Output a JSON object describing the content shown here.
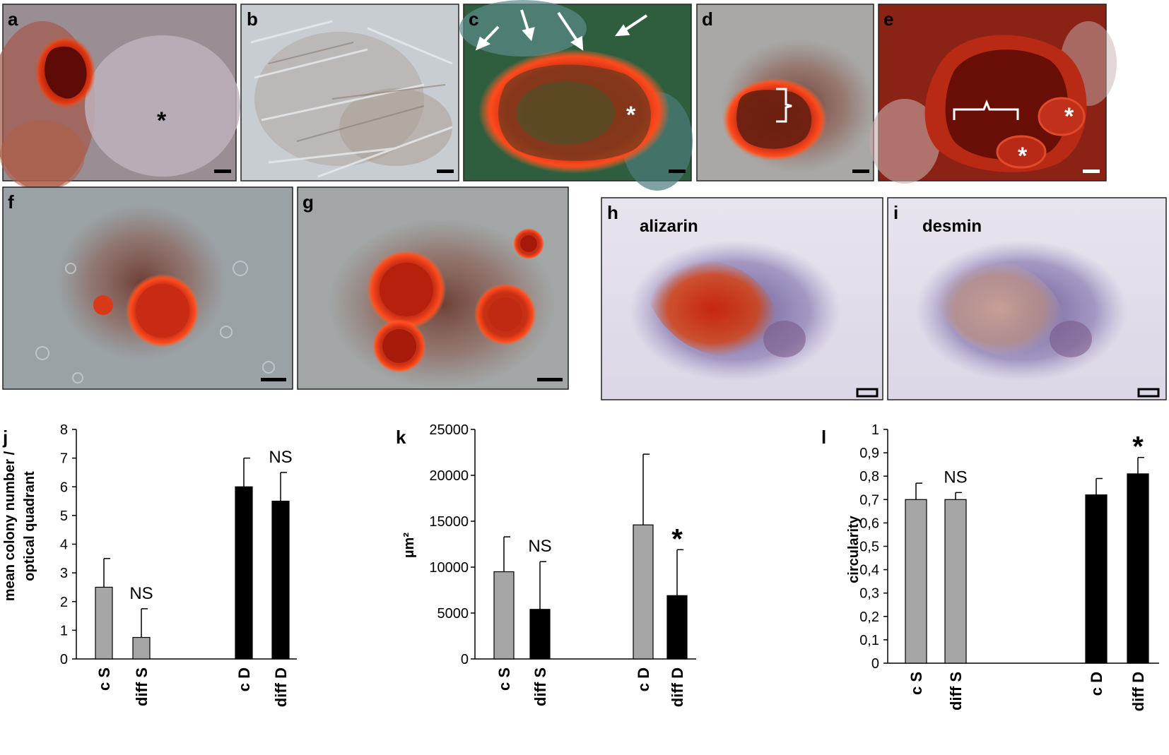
{
  "micrographs": {
    "a": {
      "letter": "a"
    },
    "b": {
      "letter": "b"
    },
    "c": {
      "letter": "c"
    },
    "d": {
      "letter": "d"
    },
    "e": {
      "letter": "e"
    },
    "f": {
      "letter": "f"
    },
    "g": {
      "letter": "g"
    },
    "h": {
      "letter": "h",
      "caption": "alizarin"
    },
    "i": {
      "letter": "i",
      "caption": "desmin"
    }
  },
  "chart_data": [
    {
      "panel": "j",
      "type": "bar",
      "categories": [
        "c S",
        "diff S",
        "c D",
        "diff D"
      ],
      "values": [
        2.5,
        0.75,
        6.0,
        5.5
      ],
      "errors": [
        1.0,
        1.0,
        1.0,
        1.0
      ],
      "bar_colors": [
        "#a6a6a6",
        "#a6a6a6",
        "#000000",
        "#000000"
      ],
      "annotations": [
        "",
        "NS",
        "",
        "NS"
      ],
      "ylabel": [
        "mean colony number /",
        "optical quadrant"
      ],
      "ylim": [
        0,
        8
      ],
      "yticks": [
        0,
        1,
        2,
        3,
        4,
        5,
        6,
        7,
        8
      ],
      "ytick_labels": [
        "0",
        "1",
        "2",
        "3",
        "4",
        "5",
        "6",
        "7",
        "8"
      ]
    },
    {
      "panel": "k",
      "type": "bar",
      "categories": [
        "c S",
        "diff S",
        "c D",
        "diff D"
      ],
      "values": [
        9500,
        5400,
        14600,
        6900
      ],
      "errors": [
        3800,
        5200,
        7700,
        5000
      ],
      "bar_colors": [
        "#a6a6a6",
        "#000000",
        "#a6a6a6",
        "#000000"
      ],
      "annotations": [
        "",
        "NS",
        "",
        "*"
      ],
      "ylabel": [
        "µm²"
      ],
      "ylim": [
        0,
        25000
      ],
      "yticks": [
        0,
        5000,
        10000,
        15000,
        20000,
        25000
      ],
      "ytick_labels": [
        "0",
        "5000",
        "10000",
        "15000",
        "20000",
        "25000"
      ]
    },
    {
      "panel": "l",
      "type": "bar",
      "categories": [
        "c S",
        "diff S",
        "c D",
        "diff D"
      ],
      "values": [
        0.7,
        0.7,
        0.72,
        0.81
      ],
      "errors": [
        0.07,
        0.03,
        0.07,
        0.07
      ],
      "bar_colors": [
        "#a6a6a6",
        "#a6a6a6",
        "#000000",
        "#000000"
      ],
      "annotations": [
        "",
        "NS",
        "",
        "*"
      ],
      "ylabel": [
        "circularity"
      ],
      "ylim": [
        0,
        1
      ],
      "yticks": [
        0,
        0.1,
        0.2,
        0.3,
        0.4,
        0.5,
        0.6,
        0.7,
        0.8,
        0.9,
        1
      ],
      "ytick_labels": [
        "0",
        "0,1",
        "0,2",
        "0,3",
        "0,4",
        "0,5",
        "0,6",
        "0,7",
        "0,8",
        "0,9",
        "1"
      ]
    }
  ]
}
